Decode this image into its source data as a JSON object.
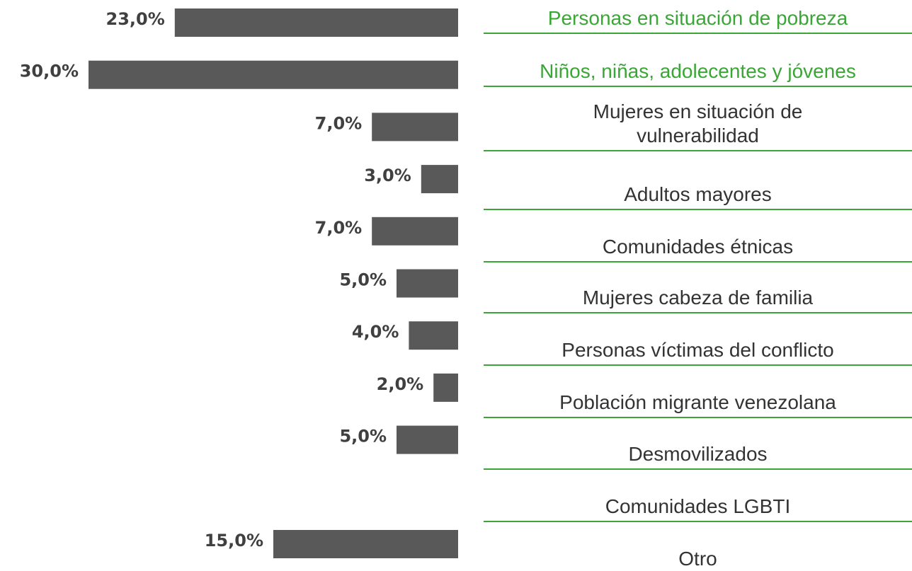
{
  "chart_data": {
    "type": "barh",
    "categories": [
      "Personas en situación de pobreza",
      "Niños, niñas, adolecentes y jóvenes",
      "Mujeres en situación de\nvulnerabilidad",
      "Adultos mayores",
      "Comunidades étnicas",
      "Mujeres cabeza de familia",
      "Personas víctimas del conflicto",
      "Población migrante venezolana",
      "Desmovilizados",
      "Comunidades LGBTI",
      "Otro"
    ],
    "category_colors": [
      "#3aa635",
      "#3aa635",
      "#333333",
      "#333333",
      "#333333",
      "#333333",
      "#333333",
      "#333333",
      "#333333",
      "#333333",
      "#333333"
    ],
    "values": [
      23,
      30,
      7,
      3,
      7,
      5,
      4,
      2,
      5,
      0,
      15
    ],
    "value_labels": [
      "23,0%",
      "30,0%",
      "7,0%",
      "3,0%",
      "7,0%",
      "5,0%",
      "4,0%",
      "2,0%",
      "5,0%",
      null,
      "15,0%"
    ],
    "color": "#595959",
    "xlim": [
      0,
      30
    ]
  }
}
